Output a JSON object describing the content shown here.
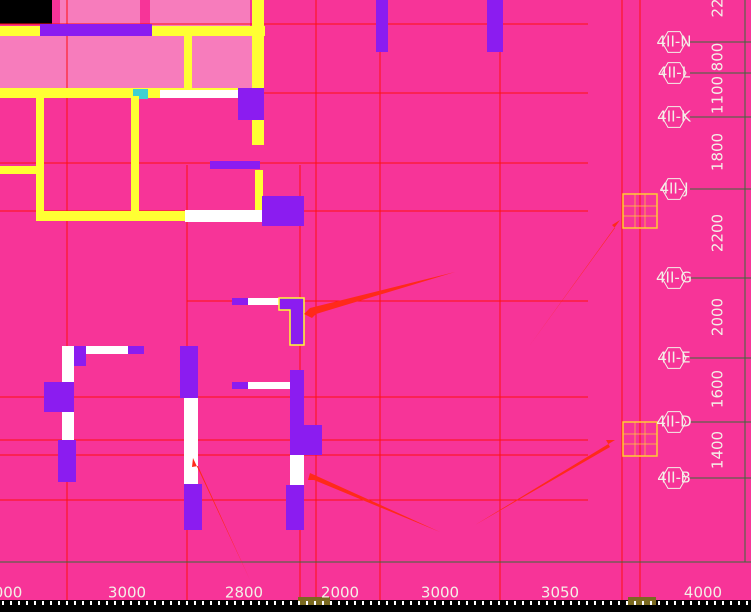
{
  "grid_labels": [
    "4II-N",
    "4II-L",
    "4II-K",
    "4II-J",
    "4II-G",
    "4II-E",
    "4II-D",
    "4II-B"
  ],
  "right_dimensions": [
    "22",
    "800",
    "1100",
    "1800",
    "2200",
    "2000",
    "1600",
    "1400"
  ],
  "bottom_dimensions": [
    "000",
    "3000",
    "2800",
    "2000",
    "3000",
    "3050",
    "4000"
  ]
}
